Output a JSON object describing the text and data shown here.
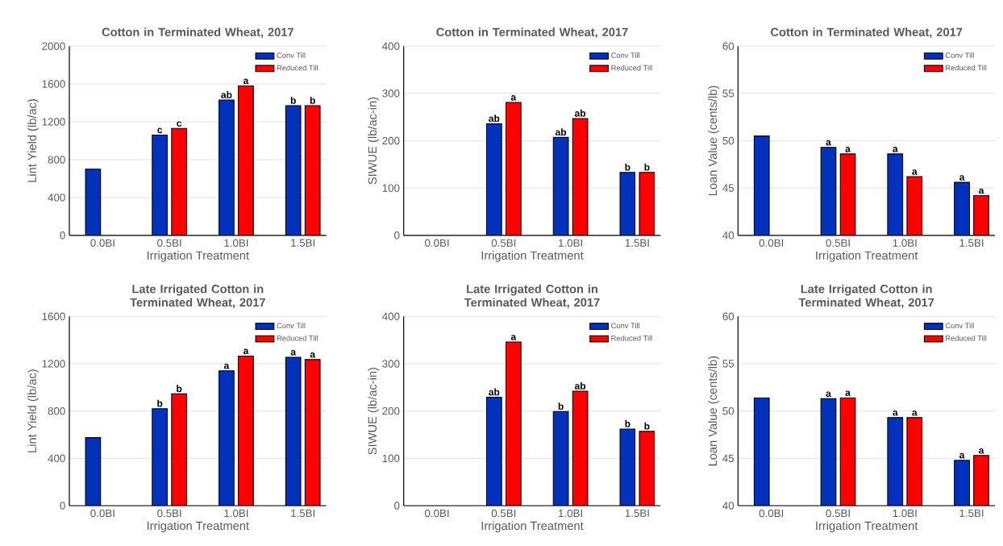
{
  "chart_data": [
    {
      "type": "bar",
      "title": "Cotton in Terminated Wheat, 2017",
      "xlabel": "Irrigation Treatment",
      "ylabel": "Lint Yield (lb/ac)",
      "categories": [
        "0.0BI",
        "0.5BI",
        "1.0BI",
        "1.5BI"
      ],
      "ylim": [
        0,
        2000
      ],
      "yticks": [
        0,
        400,
        800,
        1200,
        1600,
        2000
      ],
      "grid": "y",
      "legend": "top right",
      "series": [
        {
          "name": "Conv Till",
          "color": "#0231bb",
          "values": [
            700,
            1060,
            1430,
            1370
          ],
          "value_labels": [
            null,
            "c",
            "ab",
            "b"
          ]
        },
        {
          "name": "Reduced Till",
          "color": "#ff0000",
          "values": [
            null,
            1130,
            1580,
            1370
          ],
          "value_labels": [
            null,
            "c",
            "a",
            "b"
          ]
        }
      ]
    },
    {
      "type": "bar",
      "title": "Cotton in Terminated Wheat, 2017",
      "xlabel": "Irrigation Treatment",
      "ylabel": "SIWUE (lb/ac-in)",
      "categories": [
        "0.0BI",
        "0.5BI",
        "1.0BI",
        "1.5BI"
      ],
      "ylim": [
        0,
        400
      ],
      "yticks": [
        0,
        100,
        200,
        300,
        400
      ],
      "grid": "y",
      "legend": "top right",
      "series": [
        {
          "name": "Conv Till",
          "color": "#0231bb",
          "values": [
            null,
            236,
            207,
            133
          ],
          "value_labels": [
            null,
            "ab",
            "ab",
            "b"
          ]
        },
        {
          "name": "Reduced Till",
          "color": "#ff0000",
          "values": [
            null,
            281,
            247,
            133
          ],
          "value_labels": [
            null,
            "a",
            "ab",
            "b"
          ]
        }
      ]
    },
    {
      "type": "bar",
      "title": "Cotton in Terminated Wheat, 2017",
      "xlabel": "Irrigation Treatment",
      "ylabel": "Loan Value (cents/lb)",
      "categories": [
        "0.0BI",
        "0.5BI",
        "1.0BI",
        "1.5BI"
      ],
      "ylim": [
        40,
        60
      ],
      "yticks": [
        40,
        45,
        50,
        55,
        60
      ],
      "grid": "y",
      "legend": "top right",
      "series": [
        {
          "name": "Conv Till",
          "color": "#0231bb",
          "values": [
            50.5,
            49.3,
            48.6,
            45.6
          ],
          "value_labels": [
            null,
            "a",
            "a",
            "a"
          ]
        },
        {
          "name": "Reduced Till",
          "color": "#ff0000",
          "values": [
            null,
            48.6,
            46.2,
            44.2
          ],
          "value_labels": [
            null,
            "a",
            "a",
            "a"
          ]
        }
      ]
    },
    {
      "type": "bar",
      "title": "Late Irrigated Cotton in Terminated Wheat, 2017",
      "xlabel": "Irrigation Treatment",
      "ylabel": "Lint Yield (lb/ac)",
      "categories": [
        "0.0BI",
        "0.5BI",
        "1.0BI",
        "1.5BI"
      ],
      "ylim": [
        0,
        1600
      ],
      "yticks": [
        0,
        400,
        800,
        1200,
        1600
      ],
      "grid": "y",
      "legend": "top right",
      "series": [
        {
          "name": "Conv Till",
          "color": "#0231bb",
          "values": [
            575,
            820,
            1140,
            1255
          ],
          "value_labels": [
            null,
            "b",
            "a",
            "a"
          ]
        },
        {
          "name": "Reduced Till",
          "color": "#ff0000",
          "values": [
            null,
            945,
            1265,
            1235
          ],
          "value_labels": [
            null,
            "b",
            "a",
            "a"
          ]
        }
      ]
    },
    {
      "type": "bar",
      "title": "Late Irrigated Cotton in Terminated Wheat, 2017",
      "xlabel": "Irrigation Treatment",
      "ylabel": "SIWUE (lb/ac-in)",
      "categories": [
        "0.0BI",
        "0.5BI",
        "1.0BI",
        "1.5BI"
      ],
      "ylim": [
        0,
        400
      ],
      "yticks": [
        0,
        100,
        200,
        300,
        400
      ],
      "grid": "y",
      "legend": "top right",
      "series": [
        {
          "name": "Conv Till",
          "color": "#0231bb",
          "values": [
            null,
            229,
            199,
            162
          ],
          "value_labels": [
            null,
            "ab",
            "b",
            "b"
          ]
        },
        {
          "name": "Reduced Till",
          "color": "#ff0000",
          "values": [
            null,
            346,
            242,
            157
          ],
          "value_labels": [
            null,
            "a",
            "ab",
            "b"
          ]
        }
      ]
    },
    {
      "type": "bar",
      "title": "Late Irrigated Cotton in Terminated Wheat, 2017",
      "xlabel": "Irrigation Treatment",
      "ylabel": "Loan Value (cents/lb)",
      "categories": [
        "0.0BI",
        "0.5BI",
        "1.0BI",
        "1.5BI"
      ],
      "ylim": [
        40,
        60
      ],
      "yticks": [
        40,
        45,
        50,
        55,
        60
      ],
      "grid": "y",
      "legend": "top right",
      "series": [
        {
          "name": "Conv Till",
          "color": "#0231bb",
          "values": [
            51.4,
            51.3,
            49.3,
            44.8
          ],
          "value_labels": [
            null,
            "a",
            "a",
            "a"
          ]
        },
        {
          "name": "Reduced Till",
          "color": "#ff0000",
          "values": [
            null,
            51.4,
            49.3,
            45.3
          ],
          "value_labels": [
            null,
            "a",
            "a",
            "a"
          ]
        }
      ]
    }
  ]
}
